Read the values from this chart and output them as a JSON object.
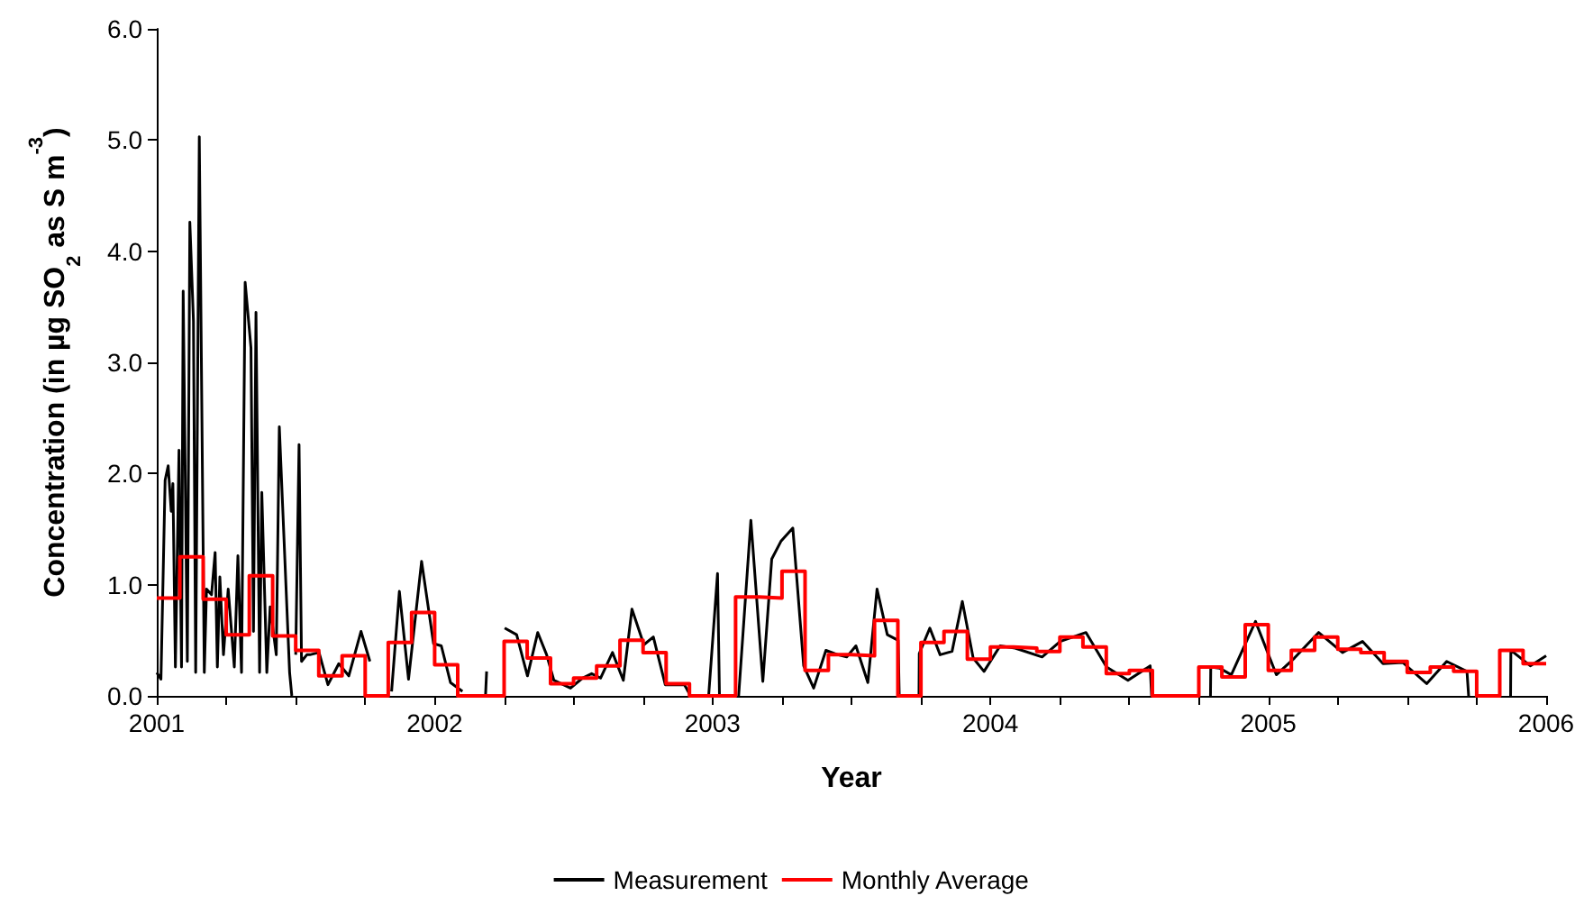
{
  "chart_data": {
    "type": "line",
    "xlabel": "Year",
    "ylabel": "Concentration (in µg SO$_{2}$ as S m$^{-3}$)",
    "xlim": [
      2001,
      2006
    ],
    "xticks": [
      2001,
      {
        "value": 2001.25,
        "label": null
      },
      {
        "value": 2001.5,
        "label": null
      },
      {
        "value": 2001.75,
        "label": null
      },
      2002,
      {
        "value": 2002.25,
        "label": null
      },
      {
        "value": 2002.5,
        "label": null
      },
      {
        "value": 2002.75,
        "label": null
      },
      2003,
      {
        "value": 2003.25,
        "label": null
      },
      {
        "value": 2003.5,
        "label": null
      },
      {
        "value": 2003.75,
        "label": null
      },
      2004,
      {
        "value": 2004.25,
        "label": null
      },
      {
        "value": 2004.5,
        "label": null
      },
      {
        "value": 2004.75,
        "label": null
      },
      2005,
      {
        "value": 2005.25,
        "label": null
      },
      {
        "value": 2005.5,
        "label": null
      },
      {
        "value": 2005.75,
        "label": null
      },
      2006
    ],
    "ylim": [
      0,
      6
    ],
    "yticks": [
      {
        "value": 0,
        "label": "0.0"
      },
      {
        "value": 1,
        "label": "1.0"
      },
      {
        "value": 2,
        "label": "2.0"
      },
      {
        "value": 3,
        "label": "3.0"
      },
      {
        "value": 4,
        "label": "4.0"
      },
      {
        "value": 5,
        "label": "5.0"
      },
      {
        "value": 6,
        "label": "6.0"
      }
    ],
    "grid": false,
    "legend": "bottom",
    "marker": "none",
    "series": [
      {
        "name": "Measurement",
        "type": "line",
        "color": "#000000",
        "x": [
          2001.0,
          2001.015,
          2001.03,
          2001.041,
          2001.052,
          2001.058,
          2001.067,
          2001.08,
          2001.089,
          2001.095,
          2001.11,
          2001.119,
          2001.132,
          2001.14,
          2001.153,
          2001.171,
          2001.179,
          2001.197,
          2001.21,
          2001.218,
          2001.227,
          2001.24,
          2001.257,
          2001.279,
          2001.292,
          2001.305,
          2001.318,
          2001.339,
          2001.348,
          2001.357,
          2001.37,
          2001.378,
          2001.396,
          2001.408,
          2001.43,
          2001.441,
          2001.478,
          2001.486,
          2001.49,
          2001.5,
          2001.512,
          2001.521,
          2001.54,
          2001.551,
          2001.584,
          2001.616,
          2001.655,
          2001.691,
          2001.735,
          2001.767,
          2001.8,
          2001.845,
          2001.873,
          2001.906,
          2001.953,
          2001.996,
          2002.024,
          2002.057,
          2002.1,
          2002.14,
          2002.183,
          2002.187,
          2002.22,
          2002.252,
          2002.295,
          2002.334,
          2002.371,
          2002.403,
          2002.429,
          2002.489,
          2002.532,
          2002.565,
          2002.597,
          2002.64,
          2002.679,
          2002.71,
          2002.753,
          2002.787,
          2002.83,
          2002.899,
          2002.921,
          2002.95,
          2002.986,
          2003.018,
          2003.025,
          2003.06,
          2003.094,
          2003.138,
          2003.181,
          2003.213,
          2003.246,
          2003.289,
          2003.328,
          2003.364,
          2003.408,
          2003.451,
          2003.483,
          2003.516,
          2003.559,
          2003.592,
          2003.629,
          2003.668,
          2003.672,
          2003.7,
          2003.743,
          2003.744,
          2003.782,
          2003.819,
          2003.862,
          2003.899,
          2003.938,
          2003.977,
          2004.035,
          2004.089,
          2004.186,
          2004.251,
          2004.344,
          2004.418,
          2004.495,
          2004.575,
          2004.58,
          2004.7,
          2004.792,
          2004.793,
          2004.824,
          2004.867,
          2004.954,
          2005.029,
          2005.094,
          2005.181,
          2005.267,
          2005.339,
          2005.413,
          2005.484,
          2005.57,
          2005.642,
          2005.715,
          2005.721,
          2005.8,
          2005.872,
          2005.873,
          2005.943,
          2006.0
        ],
        "values": [
          0.21,
          0.15,
          1.94,
          2.07,
          1.66,
          1.91,
          0.26,
          2.21,
          0.26,
          3.64,
          0.31,
          4.26,
          3.37,
          0.21,
          5.03,
          0.21,
          0.96,
          0.91,
          1.29,
          0.26,
          1.07,
          0.37,
          0.96,
          0.26,
          1.26,
          0.21,
          3.72,
          3.13,
          0.58,
          3.45,
          0.21,
          1.83,
          0.21,
          0.8,
          0.37,
          2.42,
          0.21,
          0,
          null,
          0.37,
          2.26,
          0.31,
          0.37,
          0.37,
          0.39,
          0.1,
          0.29,
          0.18,
          0.58,
          0.31,
          null,
          0.04,
          0.94,
          0.15,
          1.21,
          0.47,
          0.45,
          0.12,
          0.04,
          null,
          0,
          0.22,
          null,
          0.61,
          0.55,
          0.18,
          0.57,
          0.37,
          0.14,
          0.07,
          0.16,
          0.2,
          0.16,
          0.39,
          0.14,
          0.78,
          0.46,
          0.53,
          0.1,
          0.1,
          0,
          null,
          0,
          1.1,
          0,
          null,
          0,
          1.58,
          0.13,
          1.23,
          1.39,
          1.51,
          0.27,
          0.07,
          0.41,
          0.37,
          0.35,
          0.45,
          0.12,
          0.96,
          0.55,
          0.5,
          0,
          null,
          0,
          0.38,
          0.61,
          0.37,
          0.4,
          0.85,
          0.34,
          0.22,
          0.45,
          0.43,
          0.35,
          0.49,
          0.57,
          0.26,
          0.14,
          0.27,
          0,
          null,
          0,
          0.26,
          0.25,
          0.19,
          0.67,
          0.19,
          0.34,
          0.57,
          0.39,
          0.49,
          0.29,
          0.3,
          0.11,
          0.31,
          0.22,
          0,
          null,
          0,
          0.41,
          0.27,
          0.36
        ]
      },
      {
        "name": "Monthly Average",
        "type": "step",
        "color": "#ff0000",
        "x": [
          2001.0,
          2001.083,
          2001.167,
          2001.25,
          2001.333,
          2001.417,
          2001.5,
          2001.583,
          2001.667,
          2001.75,
          2001.833,
          2001.917,
          2002.0,
          2002.083,
          2002.167,
          2002.25,
          2002.333,
          2002.417,
          2002.5,
          2002.583,
          2002.667,
          2002.75,
          2002.833,
          2002.917,
          2003.0,
          2003.083,
          2003.167,
          2003.25,
          2003.333,
          2003.417,
          2003.5,
          2003.583,
          2003.667,
          2003.75,
          2003.833,
          2003.917,
          2004.0,
          2004.083,
          2004.167,
          2004.25,
          2004.333,
          2004.417,
          2004.5,
          2004.583,
          2004.667,
          2004.75,
          2004.833,
          2004.917,
          2005.0,
          2005.083,
          2005.167,
          2005.25,
          2005.333,
          2005.417,
          2005.5,
          2005.583,
          2005.667,
          2005.75,
          2005.833,
          2005.917,
          2006.0
        ],
        "values": [
          0.88,
          1.25,
          0.87,
          0.55,
          1.08,
          0.54,
          0.41,
          0.18,
          0.36,
          0,
          0.48,
          0.75,
          0.28,
          0,
          0,
          0.49,
          0.34,
          0.11,
          0.16,
          0.27,
          0.5,
          0.39,
          0.11,
          0,
          0,
          0.89,
          0.88,
          1.12,
          0.23,
          0.37,
          0.36,
          0.68,
          0,
          0.48,
          0.58,
          0.33,
          0.44,
          0.43,
          0.4,
          0.53,
          0.44,
          0.2,
          0.23,
          0,
          0,
          0.26,
          0.17,
          0.64,
          0.23,
          0.41,
          0.53,
          0.42,
          0.39,
          0.31,
          0.21,
          0.26,
          0.22,
          0,
          0.41,
          0.29,
          0.29
        ]
      }
    ]
  }
}
